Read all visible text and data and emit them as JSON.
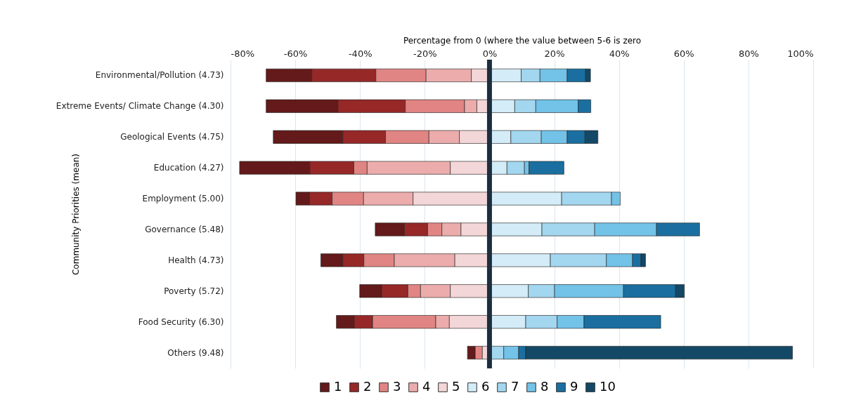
{
  "chart_data": {
    "type": "bar",
    "orientation": "horizontal",
    "stacked": true,
    "xlabel": "Percentage from 0 (where the value between 5-6 is zero",
    "ylabel": "Community Priorities (mean)",
    "categories": [
      "Environmental/Pollution (4.73)",
      "Extreme Events/ Climate Change (4.30)",
      "Geological Events (4.75)",
      "Education (4.27)",
      "Employment (5.00)",
      "Governance (5.48)",
      "Health (4.73)",
      "Poverty (5.72)",
      "Food Security (6.30)",
      "Others (9.48)"
    ],
    "series": [
      {
        "name": "1",
        "color": "#641a1a",
        "values": [
          -14.1,
          -22.2,
          -21.5,
          -21.7,
          -4.2,
          -9.0,
          -6.8,
          -6.8,
          -5.5,
          -2.4
        ]
      },
      {
        "name": "2",
        "color": "#962828",
        "values": [
          -19.8,
          -20.8,
          -13.2,
          -13.6,
          -7.0,
          -7.2,
          -6.5,
          -8.1,
          -5.7,
          null
        ]
      },
      {
        "name": "3",
        "color": "#e08583",
        "values": [
          -15.5,
          -18.3,
          -13.4,
          -4.1,
          -9.7,
          -4.4,
          -9.4,
          -3.9,
          -19.5,
          -2.2
        ]
      },
      {
        "name": "4",
        "color": "#ecacac",
        "values": [
          -14.0,
          -3.8,
          -9.4,
          -25.7,
          -15.3,
          -5.9,
          -18.7,
          -9.2,
          -4.2,
          null
        ]
      },
      {
        "name": "5",
        "color": "#f3d6d7",
        "values": [
          -5.6,
          -3.9,
          -9.3,
          -12.1,
          -23.6,
          -8.8,
          -10.7,
          -12.1,
          -12.4,
          -2.2
        ]
      },
      {
        "name": "6",
        "color": "#d3ecf7",
        "values": [
          9.8,
          7.8,
          6.6,
          5.4,
          22.3,
          16.2,
          18.8,
          12.0,
          11.2,
          null
        ]
      },
      {
        "name": "7",
        "color": "#a3d6ef",
        "values": [
          5.8,
          6.5,
          9.4,
          5.4,
          15.4,
          16.3,
          17.3,
          8.1,
          9.7,
          4.4
        ]
      },
      {
        "name": "8",
        "color": "#73c2e8",
        "values": [
          8.4,
          13.1,
          8.0,
          1.4,
          2.7,
          19.1,
          8.1,
          21.3,
          8.3,
          4.6
        ]
      },
      {
        "name": "9",
        "color": "#1a6fa0",
        "values": [
          5.7,
          3.9,
          5.5,
          10.8,
          null,
          13.3,
          2.6,
          16.1,
          23.7,
          2.2
        ]
      },
      {
        "name": "10",
        "color": "#134866",
        "values": [
          1.5,
          null,
          4.0,
          null,
          null,
          null,
          1.4,
          2.7,
          null,
          82.4
        ]
      }
    ],
    "xlim": [
      -80,
      100
    ],
    "xticks": [
      {
        "value": -80,
        "label": "-80%"
      },
      {
        "value": -60,
        "label": "-60%"
      },
      {
        "value": -40,
        "label": "-40%"
      },
      {
        "value": -20,
        "label": "-20%"
      },
      {
        "value": 0,
        "label": "0%"
      },
      {
        "value": 20,
        "label": "20%"
      },
      {
        "value": 40,
        "label": "40%"
      },
      {
        "value": 60,
        "label": "60%"
      },
      {
        "value": 80,
        "label": "80%"
      },
      {
        "value": 100,
        "label": "100%"
      }
    ],
    "ref_lines": [
      {
        "axis": "x",
        "value": 0,
        "color": "#1c2e40"
      }
    ],
    "grid": "x",
    "legend": "bottom"
  }
}
